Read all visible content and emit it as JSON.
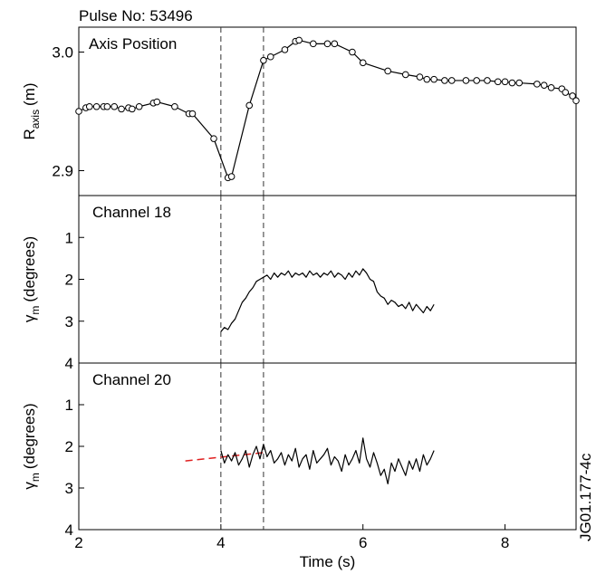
{
  "chart_data": [
    {
      "type": "line",
      "title": "Pulse No: 53496",
      "annotation": "Axis Position",
      "ylabel": {
        "main": "R",
        "sub": "axis",
        "unit": "(m)"
      },
      "xlim": [
        2,
        9
      ],
      "ylim": [
        2.879,
        3.021
      ],
      "yticks": [
        2.9,
        {
          "value": 3,
          "label": "3.0"
        }
      ],
      "vlines": [
        4.0,
        4.6
      ],
      "markers": true,
      "series": [
        {
          "color": "#000000",
          "x": [
            2.0,
            2.1,
            2.15,
            2.25,
            2.35,
            2.4,
            2.5,
            2.6,
            2.7,
            2.75,
            2.85,
            3.05,
            3.1,
            3.35,
            3.55,
            3.6,
            3.9,
            4.1,
            4.15,
            4.4,
            4.6,
            4.7,
            4.9,
            5.05,
            5.1,
            5.3,
            5.5,
            5.6,
            5.85,
            6.0,
            6.35,
            6.6,
            6.8,
            6.9,
            7.0,
            7.15,
            7.25,
            7.45,
            7.6,
            7.75,
            7.9,
            8.0,
            8.1,
            8.2,
            8.45,
            8.55,
            8.65,
            8.8,
            8.85,
            8.95,
            9.0
          ],
          "values": [
            2.95,
            2.953,
            2.954,
            2.954,
            2.954,
            2.954,
            2.954,
            2.952,
            2.953,
            2.952,
            2.954,
            2.957,
            2.958,
            2.954,
            2.948,
            2.948,
            2.927,
            2.894,
            2.895,
            2.955,
            2.993,
            2.996,
            3.002,
            3.009,
            3.01,
            3.007,
            3.007,
            3.007,
            3.0,
            2.991,
            2.984,
            2.981,
            2.979,
            2.977,
            2.977,
            2.976,
            2.976,
            2.976,
            2.976,
            2.976,
            2.975,
            2.975,
            2.974,
            2.974,
            2.973,
            2.972,
            2.97,
            2.969,
            2.966,
            2.963,
            2.959
          ]
        }
      ]
    },
    {
      "type": "line",
      "annotation": "Channel 18",
      "ylabel": {
        "main": "γ",
        "sub": "m",
        "unit": "(degrees)"
      },
      "xlim": [
        2,
        9
      ],
      "ylim": [
        4,
        0
      ],
      "yticks": [
        1,
        2,
        3,
        4
      ],
      "vlines": [
        4.0,
        4.6
      ],
      "markers": false,
      "series": [
        {
          "color": "#000000",
          "x": [
            4.0,
            4.05,
            4.1,
            4.15,
            4.2,
            4.25,
            4.3,
            4.35,
            4.4,
            4.45,
            4.5,
            4.55,
            4.6,
            4.65,
            4.7,
            4.75,
            4.8,
            4.85,
            4.9,
            4.95,
            5.0,
            5.05,
            5.1,
            5.15,
            5.2,
            5.25,
            5.3,
            5.35,
            5.4,
            5.45,
            5.5,
            5.55,
            5.6,
            5.65,
            5.7,
            5.75,
            5.8,
            5.85,
            5.9,
            5.95,
            6.0,
            6.05,
            6.1,
            6.15,
            6.2,
            6.25,
            6.3,
            6.35,
            6.4,
            6.45,
            6.5,
            6.55,
            6.6,
            6.65,
            6.7,
            6.75,
            6.8,
            6.85,
            6.9,
            6.95,
            7.0
          ],
          "values": [
            3.25,
            3.15,
            3.2,
            3.05,
            2.95,
            2.75,
            2.55,
            2.45,
            2.3,
            2.2,
            2.05,
            2.0,
            1.95,
            1.9,
            2.0,
            1.85,
            1.95,
            1.85,
            1.9,
            1.8,
            1.95,
            1.85,
            1.9,
            1.85,
            1.95,
            1.8,
            1.9,
            1.85,
            1.95,
            1.85,
            1.9,
            1.8,
            1.95,
            1.85,
            1.9,
            2.0,
            1.85,
            1.95,
            1.8,
            1.9,
            1.75,
            1.85,
            2.0,
            2.05,
            2.3,
            2.4,
            2.45,
            2.6,
            2.5,
            2.55,
            2.65,
            2.6,
            2.7,
            2.55,
            2.75,
            2.6,
            2.7,
            2.8,
            2.65,
            2.75,
            2.6
          ]
        }
      ]
    },
    {
      "type": "line",
      "annotation": "Channel 20",
      "ylabel": {
        "main": "γ",
        "sub": "m",
        "unit": "(degrees)"
      },
      "xlabel": "Time (s)",
      "side_label": "JG01.177-4c",
      "xlim": [
        2,
        9
      ],
      "ylim": [
        4,
        0
      ],
      "yticks": [
        1,
        2,
        3,
        4
      ],
      "xticks": [
        2,
        4,
        6,
        8
      ],
      "vlines": [
        4.0,
        4.6
      ],
      "markers": false,
      "trend": {
        "color": "#e02020",
        "dash": true,
        "x": [
          3.5,
          4.6
        ],
        "values": [
          2.35,
          2.15
        ]
      },
      "series": [
        {
          "color": "#000000",
          "x": [
            4.0,
            4.05,
            4.1,
            4.15,
            4.2,
            4.25,
            4.3,
            4.35,
            4.4,
            4.45,
            4.5,
            4.55,
            4.6,
            4.65,
            4.7,
            4.75,
            4.8,
            4.85,
            4.9,
            4.95,
            5.0,
            5.05,
            5.1,
            5.15,
            5.2,
            5.25,
            5.3,
            5.35,
            5.4,
            5.45,
            5.5,
            5.55,
            5.6,
            5.65,
            5.7,
            5.75,
            5.8,
            5.85,
            5.9,
            5.95,
            6.0,
            6.05,
            6.1,
            6.15,
            6.2,
            6.25,
            6.3,
            6.35,
            6.4,
            6.45,
            6.5,
            6.55,
            6.6,
            6.65,
            6.7,
            6.75,
            6.8,
            6.85,
            6.9,
            6.95,
            7.0
          ],
          "values": [
            2.1,
            2.4,
            2.2,
            2.35,
            2.15,
            2.45,
            2.3,
            2.1,
            2.5,
            2.2,
            2.0,
            2.3,
            1.95,
            2.25,
            2.1,
            2.4,
            2.3,
            2.15,
            2.45,
            2.2,
            2.35,
            2.05,
            2.5,
            2.3,
            2.2,
            2.55,
            2.1,
            2.4,
            2.3,
            2.2,
            2.05,
            2.45,
            2.25,
            2.35,
            2.6,
            2.2,
            2.45,
            2.3,
            2.1,
            2.4,
            1.8,
            2.3,
            2.5,
            2.15,
            2.4,
            2.7,
            2.55,
            2.9,
            2.4,
            2.6,
            2.3,
            2.5,
            2.7,
            2.35,
            2.55,
            2.3,
            2.6,
            2.2,
            2.45,
            2.3,
            2.1
          ]
        }
      ]
    }
  ]
}
